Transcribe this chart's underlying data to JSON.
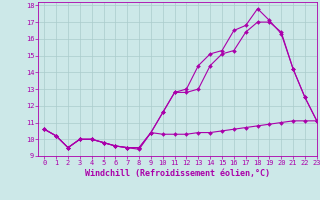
{
  "xlabel": "Windchill (Refroidissement éolien,°C)",
  "xlim": [
    -0.5,
    23
  ],
  "ylim": [
    9,
    18.2
  ],
  "bg_color": "#cce8e8",
  "line_color": "#aa00aa",
  "grid_color": "#aacccc",
  "xticks": [
    0,
    1,
    2,
    3,
    4,
    5,
    6,
    7,
    8,
    9,
    10,
    11,
    12,
    13,
    14,
    15,
    16,
    17,
    18,
    19,
    20,
    21,
    22,
    23
  ],
  "yticks": [
    9,
    10,
    11,
    12,
    13,
    14,
    15,
    16,
    17,
    18
  ],
  "line1_x": [
    0,
    1,
    2,
    3,
    4,
    5,
    6,
    7,
    8,
    9,
    10,
    11,
    12,
    13,
    14,
    15,
    16,
    17,
    18,
    19,
    20,
    21,
    22,
    23
  ],
  "line1_y": [
    10.6,
    10.2,
    9.5,
    10.0,
    10.0,
    9.8,
    9.6,
    9.5,
    9.4,
    10.4,
    10.3,
    10.3,
    10.3,
    10.4,
    10.4,
    10.5,
    10.6,
    10.7,
    10.8,
    10.9,
    11.0,
    11.1,
    11.1,
    11.1
  ],
  "line2_x": [
    0,
    1,
    2,
    3,
    4,
    5,
    6,
    7,
    8,
    9,
    10,
    11,
    12,
    13,
    14,
    15,
    16,
    17,
    18,
    19,
    20,
    21,
    22,
    23
  ],
  "line2_y": [
    10.6,
    10.2,
    9.5,
    10.0,
    10.0,
    9.8,
    9.6,
    9.5,
    9.5,
    10.4,
    11.6,
    12.8,
    12.8,
    13.0,
    14.4,
    15.1,
    15.3,
    16.4,
    17.0,
    17.0,
    16.4,
    14.2,
    12.5,
    11.1
  ],
  "line3_x": [
    0,
    1,
    2,
    3,
    4,
    5,
    6,
    7,
    8,
    9,
    10,
    11,
    12,
    13,
    14,
    15,
    16,
    17,
    18,
    19,
    20,
    21,
    22,
    23
  ],
  "line3_y": [
    10.6,
    10.2,
    9.5,
    10.0,
    10.0,
    9.8,
    9.6,
    9.5,
    9.5,
    10.4,
    11.6,
    12.8,
    13.0,
    14.4,
    15.1,
    15.3,
    16.5,
    16.8,
    17.8,
    17.1,
    16.3,
    14.2,
    12.5,
    11.1
  ],
  "markersize": 2.0,
  "linewidth": 0.8,
  "tick_fontsize": 5.0,
  "label_fontsize": 6.0
}
